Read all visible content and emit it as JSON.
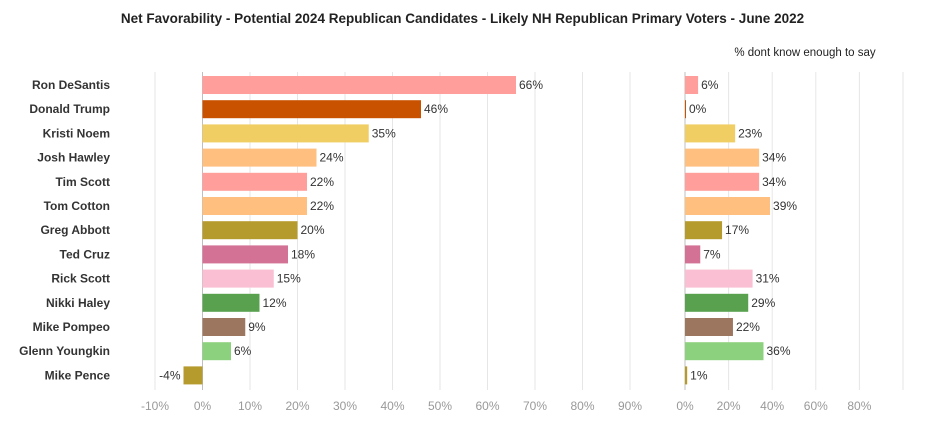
{
  "title": "Net Favorability - Potential 2024 Republican Candidates - Likely NH Republican Primary Voters -  June 2022",
  "chart_data": [
    {
      "type": "bar",
      "orientation": "horizontal",
      "title": "",
      "xlabel": "",
      "ylabel": "",
      "categories": [
        "Ron DeSantis",
        "Donald Trump",
        "Kristi Noem",
        "Josh Hawley",
        "Tim Scott",
        "Tom Cotton",
        "Greg Abbott",
        "Ted Cruz",
        "Rick Scott",
        "Nikki Haley",
        "Mike Pompeo",
        "Glenn Youngkin",
        "Mike Pence"
      ],
      "values": [
        66,
        46,
        35,
        24,
        22,
        22,
        20,
        18,
        15,
        12,
        9,
        6,
        -4
      ],
      "value_labels": [
        "66%",
        "46%",
        "35%",
        "24%",
        "22%",
        "22%",
        "20%",
        "18%",
        "15%",
        "12%",
        "9%",
        "6%",
        "-4%"
      ],
      "xlim": [
        -10,
        90
      ],
      "xticks": [
        -10,
        0,
        10,
        20,
        30,
        40,
        50,
        60,
        70,
        80,
        90
      ],
      "xtick_labels": [
        "-10%",
        "0%",
        "10%",
        "20%",
        "30%",
        "40%",
        "50%",
        "60%",
        "70%",
        "80%",
        "90%"
      ],
      "grid": "vertical",
      "colors": [
        "#FF9E9B",
        "#C85200",
        "#F1CE63",
        "#FFBF7F",
        "#FF9E9B",
        "#FFBF7F",
        "#B59A2D",
        "#D37295",
        "#FABFD2",
        "#59A14F",
        "#9D7660",
        "#8CD17D",
        "#B59A2D"
      ]
    },
    {
      "type": "bar",
      "orientation": "horizontal",
      "title": "% dont know enough to say",
      "xlabel": "",
      "ylabel": "",
      "categories": [
        "Ron DeSantis",
        "Donald Trump",
        "Kristi Noem",
        "Josh Hawley",
        "Tim Scott",
        "Tom Cotton",
        "Greg Abbott",
        "Ted Cruz",
        "Rick Scott",
        "Nikki Haley",
        "Mike Pompeo",
        "Glenn Youngkin",
        "Mike Pence"
      ],
      "values": [
        6,
        0,
        23,
        34,
        34,
        39,
        17,
        7,
        31,
        29,
        22,
        36,
        1
      ],
      "value_labels": [
        "6%",
        "0%",
        "23%",
        "34%",
        "34%",
        "39%",
        "17%",
        "7%",
        "31%",
        "29%",
        "22%",
        "36%",
        "1%"
      ],
      "xlim": [
        0,
        100
      ],
      "xticks": [
        0,
        20,
        40,
        60,
        80,
        100
      ],
      "xtick_labels": [
        "0%",
        "20%",
        "40%",
        "60%",
        "80%",
        ""
      ],
      "grid": "vertical",
      "colors": [
        "#FF9E9B",
        "#C85200",
        "#F1CE63",
        "#FFBF7F",
        "#FF9E9B",
        "#FFBF7F",
        "#B59A2D",
        "#D37295",
        "#FABFD2",
        "#59A14F",
        "#9D7660",
        "#8CD17D",
        "#B59A2D"
      ]
    }
  ]
}
